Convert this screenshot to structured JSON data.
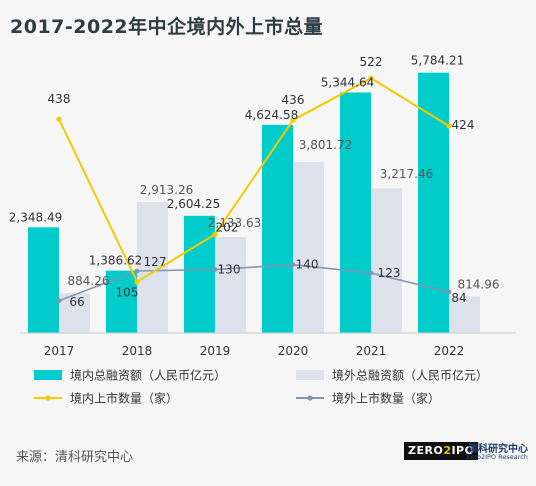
{
  "title": "2017-2022年中企境内外上市总量",
  "source": "来源：清科研究中心",
  "logo": {
    "box_left": "ZERO",
    "box_two": "2",
    "box_right": "IPO",
    "cn": "清科研究中心",
    "en": "Zero2IPO Research"
  },
  "colors": {
    "domestic_bar": "#00cccc",
    "overseas_bar": "#dde1ec",
    "domestic_line": "#f5c900",
    "overseas_line": "#8494b4",
    "background": "#f6f6f6"
  },
  "chart_data": {
    "type": "bar",
    "categories": [
      "2017",
      "2018",
      "2019",
      "2020",
      "2021",
      "2022"
    ],
    "series": [
      {
        "name": "境内总融资额（人民币亿元）",
        "type": "bar",
        "axis": "left",
        "values": [
          2348.49,
          1386.62,
          2604.25,
          4624.58,
          5344.64,
          5784.21
        ],
        "labels": [
          "2,348.49",
          "1,386.62",
          "2,604.25",
          "4,624.58",
          "5,344.64",
          "5,784.21"
        ]
      },
      {
        "name": "境外总融资额（人民币亿元）",
        "type": "bar",
        "axis": "left",
        "values": [
          884.26,
          2913.26,
          2133.63,
          3801.72,
          3217.46,
          814.96
        ],
        "labels": [
          "884.26",
          "2,913.26",
          "2,133.63",
          "3,801.72",
          "3,217.46",
          "814.96"
        ]
      },
      {
        "name": "境内上市数量（家）",
        "type": "line",
        "axis": "right",
        "values": [
          438,
          105,
          202,
          436,
          522,
          424
        ],
        "labels": [
          "438",
          "105",
          "202",
          "436",
          "522",
          "424"
        ]
      },
      {
        "name": "境外上市数量（家）",
        "type": "line",
        "axis": "right",
        "values": [
          66,
          127,
          130,
          140,
          123,
          84
        ],
        "labels": [
          "66",
          "127",
          "130",
          "140",
          "123",
          "84"
        ]
      }
    ],
    "ylim_left": [
      0,
      6400
    ],
    "ylim_right": [
      0,
      590
    ],
    "legend_position": "bottom"
  }
}
